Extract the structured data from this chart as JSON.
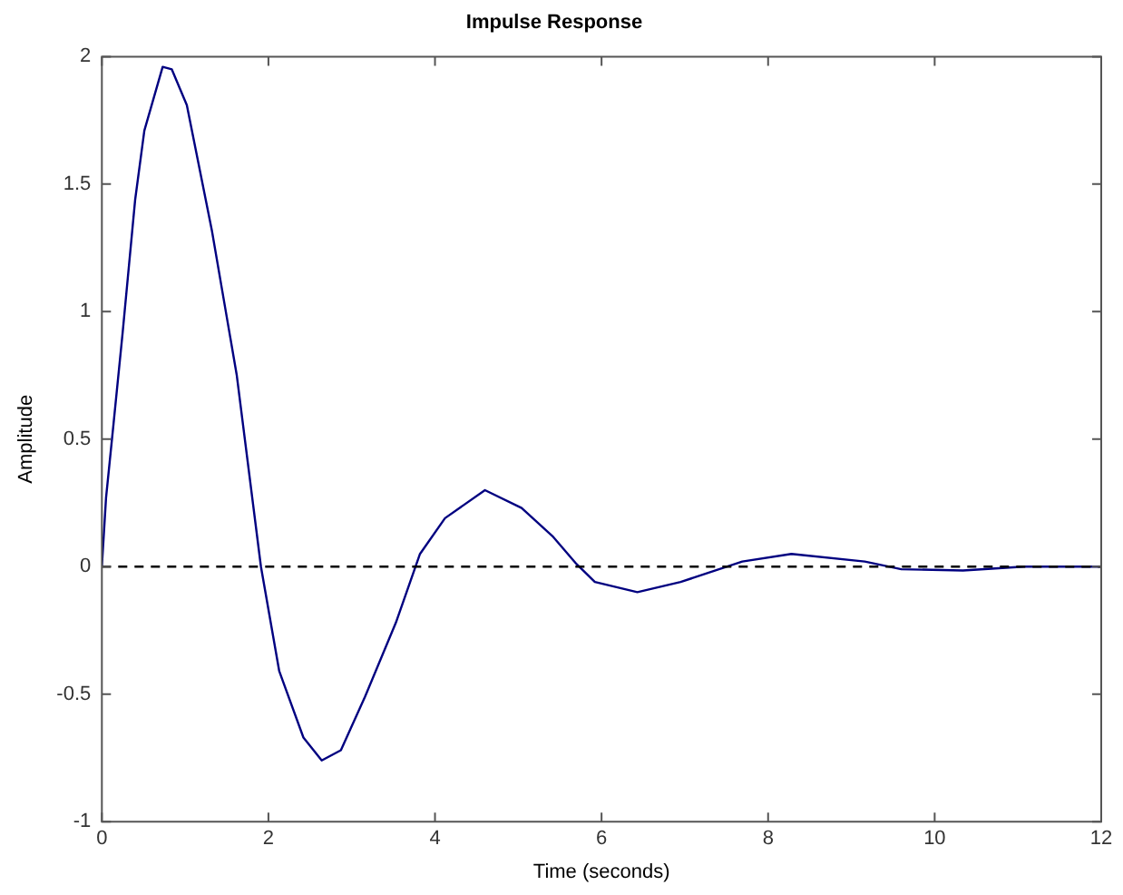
{
  "chart_data": {
    "type": "line",
    "title": "Impulse Response",
    "xlabel": "Time (seconds)",
    "ylabel": "Amplitude",
    "x": [
      0,
      0.05,
      0.14,
      0.25,
      0.4,
      0.51,
      0.73,
      0.84,
      1.02,
      1.32,
      1.62,
      1.91,
      2.13,
      2.42,
      2.64,
      2.87,
      3.16,
      3.53,
      3.82,
      4.12,
      4.6,
      5.04,
      5.41,
      5.7,
      5.92,
      6.43,
      6.95,
      7.69,
      8.28,
      9.16,
      9.6,
      10.34,
      11.07,
      12
    ],
    "series": [
      {
        "color": "#000080",
        "values": [
          0,
          0.27,
          0.56,
          0.92,
          1.44,
          1.71,
          1.96,
          1.95,
          1.81,
          1.32,
          0.75,
          0,
          -0.41,
          -0.67,
          -0.76,
          -0.72,
          -0.51,
          -0.22,
          0.05,
          0.19,
          0.3,
          0.23,
          0.12,
          0.01,
          -0.06,
          -0.1,
          -0.06,
          0.02,
          0.05,
          0.02,
          -0.01,
          -0.015,
          0,
          0
        ]
      }
    ],
    "xlim": [
      0,
      12
    ],
    "xticks": [
      0,
      2,
      4,
      6,
      8,
      10,
      12
    ],
    "ylim": [
      -1,
      2
    ],
    "yticks": [
      -1,
      -0.5,
      0,
      0.5,
      1,
      1.5,
      2
    ],
    "grid": false,
    "legend": false,
    "marker": "none",
    "line_style": "solid",
    "ref_lines": [
      {
        "axis": "y",
        "value": 0,
        "color": "#000000",
        "line_style": "dashed"
      }
    ]
  }
}
